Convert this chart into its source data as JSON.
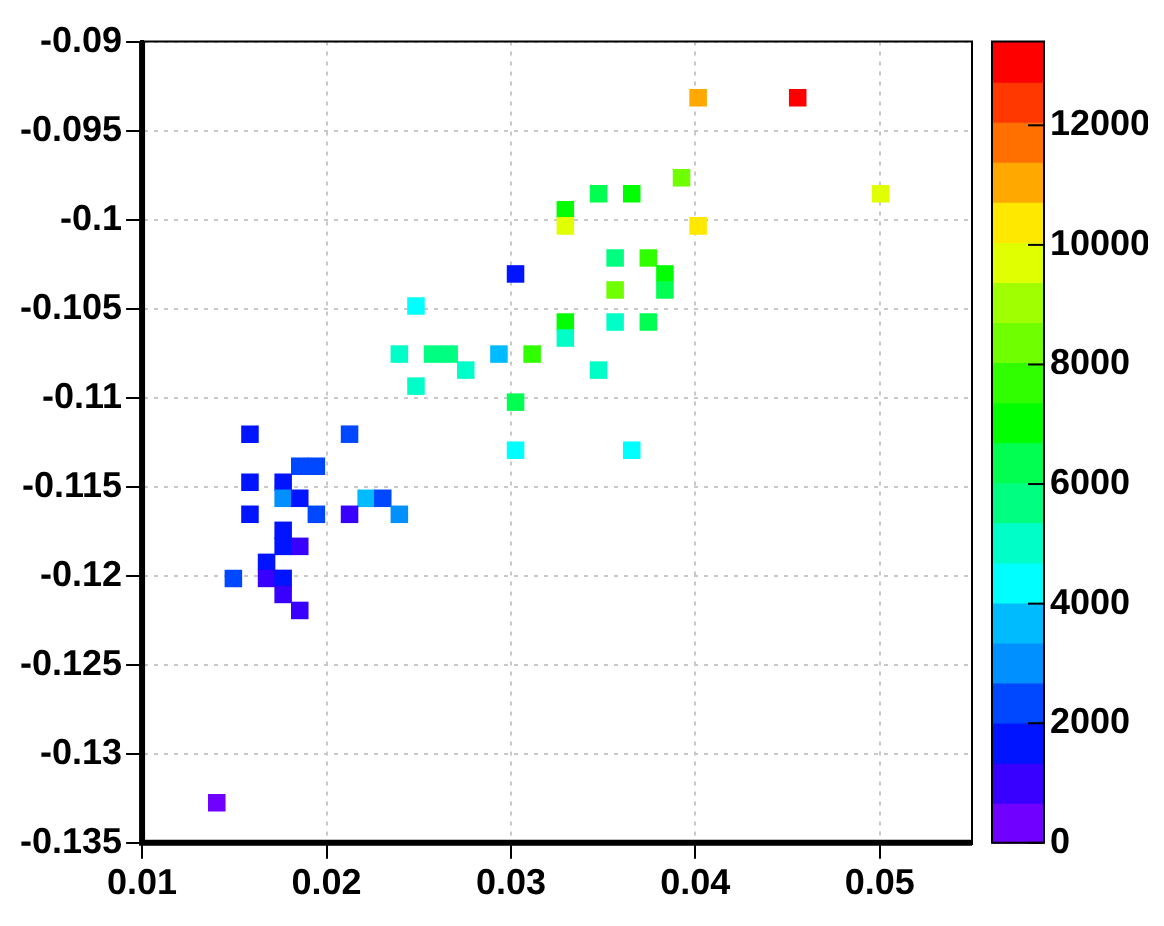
{
  "chart_data": {
    "type": "scatter",
    "marker": "square",
    "grid": true,
    "xlim": [
      0.01,
      0.055
    ],
    "xticks": [
      0.01,
      0.02,
      0.03,
      0.04,
      0.05
    ],
    "ylim": [
      -0.135,
      -0.09
    ],
    "yticks": [
      -0.135,
      -0.13,
      -0.125,
      -0.12,
      -0.115,
      -0.11,
      -0.105,
      -0.1,
      -0.095,
      -0.09
    ],
    "clim": [
      0,
      13400
    ],
    "cticks": [
      0,
      2000,
      4000,
      6000,
      8000,
      10000,
      12000
    ],
    "x": [
      0.03295,
      0.03295,
      0.03025,
      0.02485,
      0.02395,
      0.02575,
      0.02665,
      0.02935,
      0.03115,
      0.02755,
      0.02485,
      0.03025,
      0.01585,
      0.02125,
      0.03025,
      0.03655,
      0.04015,
      0.04555,
      0.03925,
      0.03475,
      0.03655,
      0.05005,
      0.04015,
      0.03565,
      0.03745,
      0.03835,
      0.03565,
      0.03835,
      0.03295,
      0.03565,
      0.03745,
      0.03295,
      0.03475,
      0.01855,
      0.01945,
      0.01585,
      0.01765,
      0.01765,
      0.01855,
      0.02215,
      0.02305,
      0.01585,
      0.01945,
      0.02125,
      0.02395,
      0.01765,
      0.01765,
      0.01855,
      0.01675,
      0.01495,
      0.01675,
      0.01765,
      0.01765,
      0.01855,
      0.01405
    ],
    "values": [
      -0.09945,
      -0.10035,
      -0.10305,
      -0.10485,
      -0.10755,
      -0.10755,
      -0.10755,
      -0.10755,
      -0.10755,
      -0.10845,
      -0.10935,
      -0.11025,
      -0.11205,
      -0.11205,
      -0.11295,
      -0.11295,
      -0.09315,
      -0.09315,
      -0.09765,
      -0.09855,
      -0.09855,
      -0.09855,
      -0.10035,
      -0.10215,
      -0.10215,
      -0.10305,
      -0.10395,
      -0.10395,
      -0.10575,
      -0.10575,
      -0.10575,
      -0.10665,
      -0.10845,
      -0.11385,
      -0.11385,
      -0.11475,
      -0.11475,
      -0.11565,
      -0.11565,
      -0.11565,
      -0.11565,
      -0.11655,
      -0.11655,
      -0.11655,
      -0.11655,
      -0.11745,
      -0.11835,
      -0.11835,
      -0.11925,
      -0.12015,
      -0.12015,
      -0.12015,
      -0.12105,
      -0.12195,
      -0.13275
    ],
    "cvalues": [
      7000,
      9700,
      1700,
      4400,
      5000,
      5700,
      5700,
      3700,
      7700,
      5000,
      5000,
      6400,
      1700,
      2300,
      4400,
      4400,
      11100,
      13100,
      8400,
      6400,
      7000,
      9700,
      10400,
      5700,
      7700,
      7000,
      8400,
      6400,
      7000,
      5000,
      6400,
      5000,
      5000,
      2300,
      2300,
      1700,
      1700,
      3000,
      1700,
      3700,
      2300,
      1700,
      2300,
      1000,
      3000,
      1700,
      1700,
      1000,
      1700,
      2300,
      1000,
      1700,
      1000,
      1000,
      300
    ]
  }
}
